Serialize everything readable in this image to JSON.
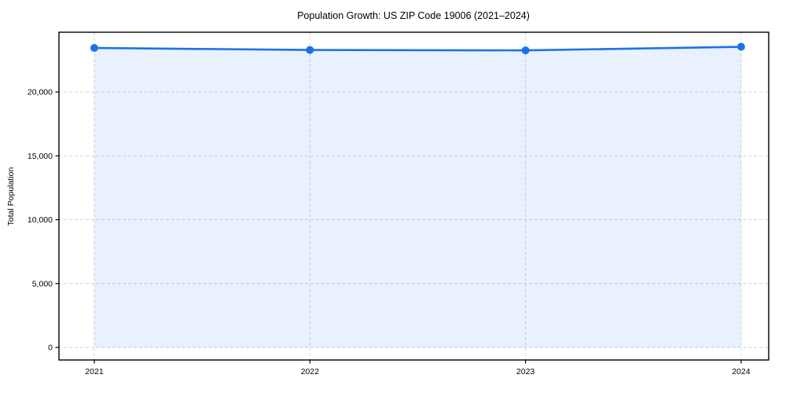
{
  "chart_data": {
    "type": "line",
    "title": "Population Growth: US ZIP Code 19006 (2021–2024)",
    "xlabel": "",
    "ylabel": "Total Population",
    "x": [
      2021,
      2022,
      2023,
      2024
    ],
    "x_tick_labels": [
      "2021",
      "2022",
      "2023",
      "2024"
    ],
    "series": [
      {
        "name": "Total Population",
        "values": [
          23450,
          23290,
          23260,
          23540
        ]
      }
    ],
    "y_ticks": [
      0,
      5000,
      10000,
      15000,
      20000
    ],
    "y_tick_labels": [
      "0",
      "5,000",
      "10,000",
      "15,000",
      "20,000"
    ],
    "xlim": [
      2020.836,
      2024.128
    ],
    "ylim": [
      -985,
      24680
    ],
    "fill_baseline": 0,
    "grid": true,
    "grid_style": "dashed",
    "legend_position": "none",
    "colors": {
      "line": "#1a73e8",
      "marker": "#1a73e8",
      "fill": "#1a73e8",
      "fill_opacity": 0.1,
      "grid": "#cccccc",
      "frame": "#000000",
      "background": "#ffffff",
      "text": "#000000"
    }
  }
}
